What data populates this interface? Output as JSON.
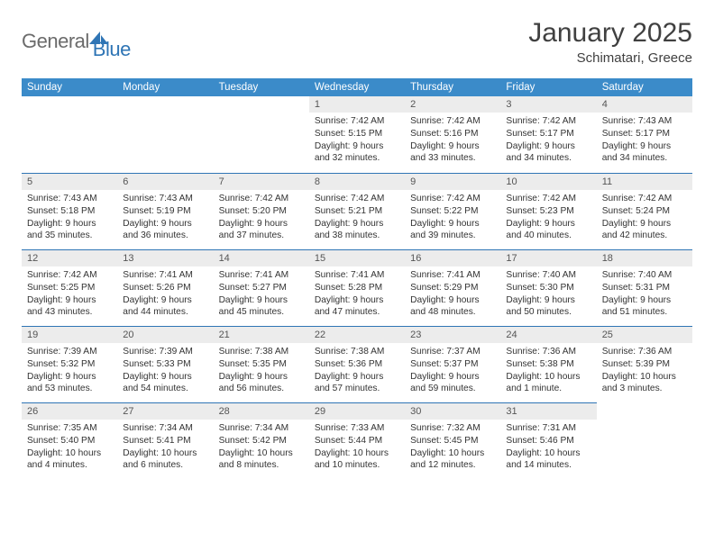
{
  "brand": {
    "text_a": "General",
    "text_b": "Blue"
  },
  "title": "January 2025",
  "location": "Schimatari, Greece",
  "header_bg": "#3b8bc9",
  "header_fg": "#ffffff",
  "daynum_bg": "#ececec",
  "border_color": "#2f75b5",
  "days_of_week": [
    "Sunday",
    "Monday",
    "Tuesday",
    "Wednesday",
    "Thursday",
    "Friday",
    "Saturday"
  ],
  "weeks": [
    [
      null,
      null,
      null,
      {
        "n": "1",
        "sr": "7:42 AM",
        "ss": "5:15 PM",
        "dl": "9 hours and 32 minutes."
      },
      {
        "n": "2",
        "sr": "7:42 AM",
        "ss": "5:16 PM",
        "dl": "9 hours and 33 minutes."
      },
      {
        "n": "3",
        "sr": "7:42 AM",
        "ss": "5:17 PM",
        "dl": "9 hours and 34 minutes."
      },
      {
        "n": "4",
        "sr": "7:43 AM",
        "ss": "5:17 PM",
        "dl": "9 hours and 34 minutes."
      }
    ],
    [
      {
        "n": "5",
        "sr": "7:43 AM",
        "ss": "5:18 PM",
        "dl": "9 hours and 35 minutes."
      },
      {
        "n": "6",
        "sr": "7:43 AM",
        "ss": "5:19 PM",
        "dl": "9 hours and 36 minutes."
      },
      {
        "n": "7",
        "sr": "7:42 AM",
        "ss": "5:20 PM",
        "dl": "9 hours and 37 minutes."
      },
      {
        "n": "8",
        "sr": "7:42 AM",
        "ss": "5:21 PM",
        "dl": "9 hours and 38 minutes."
      },
      {
        "n": "9",
        "sr": "7:42 AM",
        "ss": "5:22 PM",
        "dl": "9 hours and 39 minutes."
      },
      {
        "n": "10",
        "sr": "7:42 AM",
        "ss": "5:23 PM",
        "dl": "9 hours and 40 minutes."
      },
      {
        "n": "11",
        "sr": "7:42 AM",
        "ss": "5:24 PM",
        "dl": "9 hours and 42 minutes."
      }
    ],
    [
      {
        "n": "12",
        "sr": "7:42 AM",
        "ss": "5:25 PM",
        "dl": "9 hours and 43 minutes."
      },
      {
        "n": "13",
        "sr": "7:41 AM",
        "ss": "5:26 PM",
        "dl": "9 hours and 44 minutes."
      },
      {
        "n": "14",
        "sr": "7:41 AM",
        "ss": "5:27 PM",
        "dl": "9 hours and 45 minutes."
      },
      {
        "n": "15",
        "sr": "7:41 AM",
        "ss": "5:28 PM",
        "dl": "9 hours and 47 minutes."
      },
      {
        "n": "16",
        "sr": "7:41 AM",
        "ss": "5:29 PM",
        "dl": "9 hours and 48 minutes."
      },
      {
        "n": "17",
        "sr": "7:40 AM",
        "ss": "5:30 PM",
        "dl": "9 hours and 50 minutes."
      },
      {
        "n": "18",
        "sr": "7:40 AM",
        "ss": "5:31 PM",
        "dl": "9 hours and 51 minutes."
      }
    ],
    [
      {
        "n": "19",
        "sr": "7:39 AM",
        "ss": "5:32 PM",
        "dl": "9 hours and 53 minutes."
      },
      {
        "n": "20",
        "sr": "7:39 AM",
        "ss": "5:33 PM",
        "dl": "9 hours and 54 minutes."
      },
      {
        "n": "21",
        "sr": "7:38 AM",
        "ss": "5:35 PM",
        "dl": "9 hours and 56 minutes."
      },
      {
        "n": "22",
        "sr": "7:38 AM",
        "ss": "5:36 PM",
        "dl": "9 hours and 57 minutes."
      },
      {
        "n": "23",
        "sr": "7:37 AM",
        "ss": "5:37 PM",
        "dl": "9 hours and 59 minutes."
      },
      {
        "n": "24",
        "sr": "7:36 AM",
        "ss": "5:38 PM",
        "dl": "10 hours and 1 minute."
      },
      {
        "n": "25",
        "sr": "7:36 AM",
        "ss": "5:39 PM",
        "dl": "10 hours and 3 minutes."
      }
    ],
    [
      {
        "n": "26",
        "sr": "7:35 AM",
        "ss": "5:40 PM",
        "dl": "10 hours and 4 minutes."
      },
      {
        "n": "27",
        "sr": "7:34 AM",
        "ss": "5:41 PM",
        "dl": "10 hours and 6 minutes."
      },
      {
        "n": "28",
        "sr": "7:34 AM",
        "ss": "5:42 PM",
        "dl": "10 hours and 8 minutes."
      },
      {
        "n": "29",
        "sr": "7:33 AM",
        "ss": "5:44 PM",
        "dl": "10 hours and 10 minutes."
      },
      {
        "n": "30",
        "sr": "7:32 AM",
        "ss": "5:45 PM",
        "dl": "10 hours and 12 minutes."
      },
      {
        "n": "31",
        "sr": "7:31 AM",
        "ss": "5:46 PM",
        "dl": "10 hours and 14 minutes."
      },
      null
    ]
  ],
  "labels": {
    "sunrise": "Sunrise:",
    "sunset": "Sunset:",
    "daylight": "Daylight:"
  }
}
